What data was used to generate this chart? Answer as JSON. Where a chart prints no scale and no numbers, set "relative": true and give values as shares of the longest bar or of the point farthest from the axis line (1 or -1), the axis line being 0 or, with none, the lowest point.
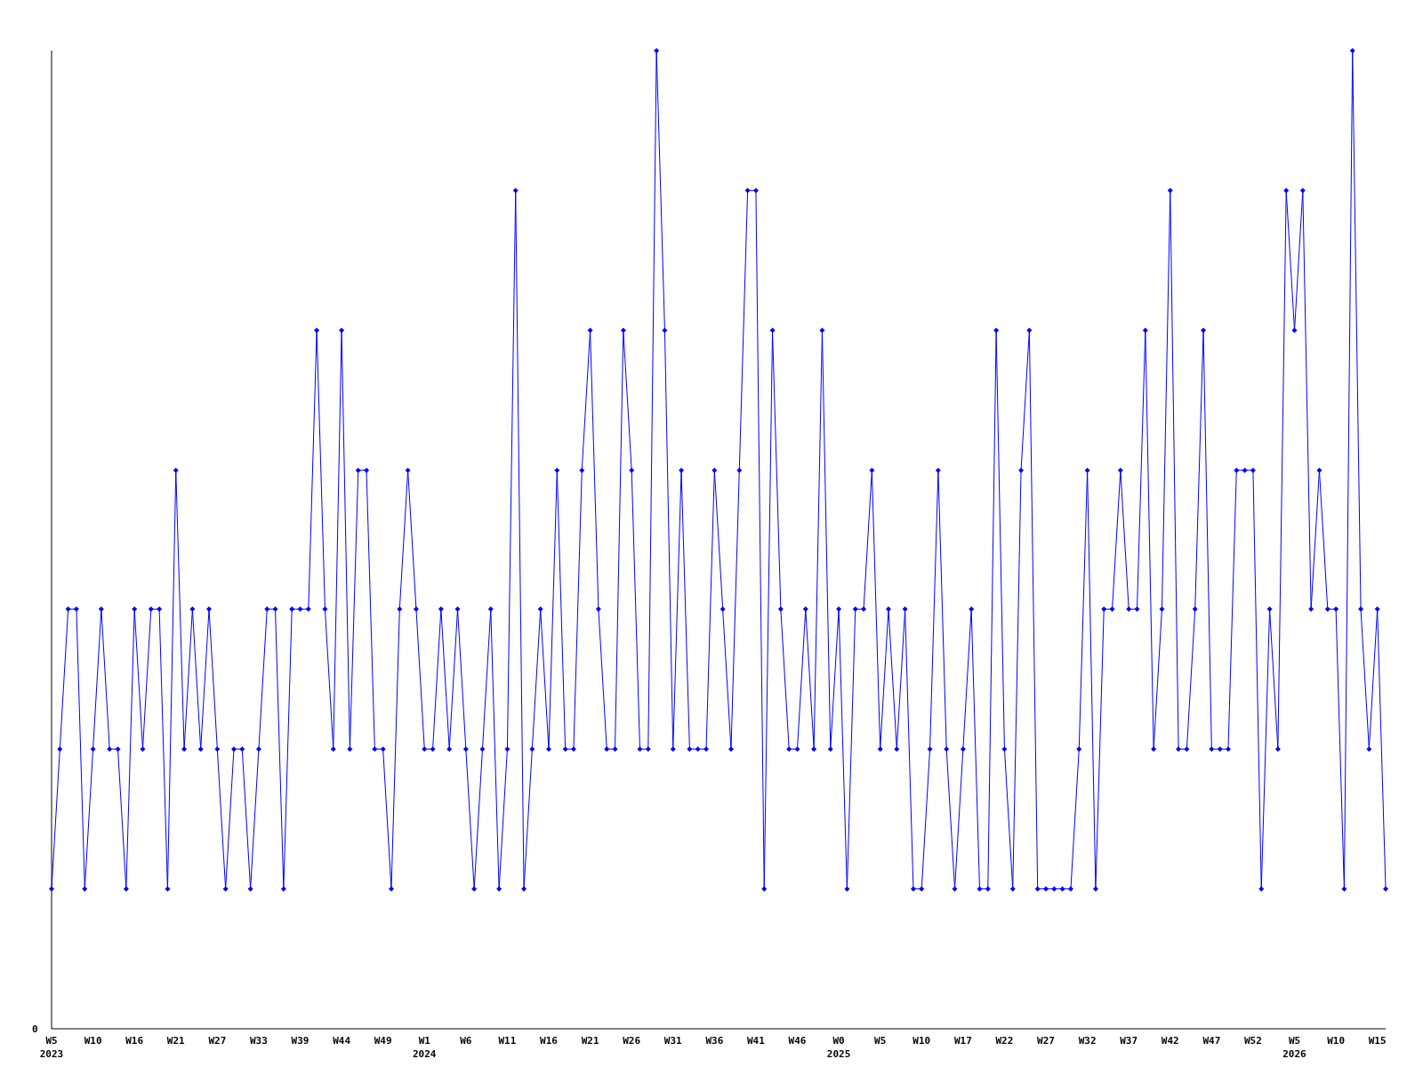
{
  "chart_data": {
    "type": "line",
    "relative": true,
    "marker": "diamond",
    "line_style": "solid",
    "annotations": [
      "0"
    ],
    "categories": [
      "W5\n2023",
      null,
      null,
      null,
      null,
      "W10",
      null,
      null,
      null,
      null,
      "W16",
      null,
      null,
      null,
      null,
      "W21",
      null,
      null,
      null,
      null,
      "W27",
      null,
      null,
      null,
      null,
      "W33",
      null,
      null,
      null,
      null,
      "W39",
      null,
      null,
      null,
      null,
      "W44",
      null,
      null,
      null,
      null,
      "W49",
      null,
      null,
      null,
      null,
      "W1\n2024",
      null,
      null,
      null,
      null,
      "W6",
      null,
      null,
      null,
      null,
      "W11",
      null,
      null,
      null,
      null,
      "W16",
      null,
      null,
      null,
      null,
      "W21",
      null,
      null,
      null,
      null,
      "W26",
      null,
      null,
      null,
      null,
      "W31",
      null,
      null,
      null,
      null,
      "W36",
      null,
      null,
      null,
      null,
      "W41",
      null,
      null,
      null,
      null,
      "W46",
      null,
      null,
      null,
      null,
      "W0\n2025",
      null,
      null,
      null,
      null,
      "W5",
      null,
      null,
      null,
      null,
      "W10",
      null,
      null,
      null,
      null,
      "W17",
      null,
      null,
      null,
      null,
      "W22",
      null,
      null,
      null,
      null,
      "W27",
      null,
      null,
      null,
      null,
      "W32",
      null,
      null,
      null,
      null,
      "W37",
      null,
      null,
      null,
      null,
      "W42",
      null,
      null,
      null,
      null,
      "W47",
      null,
      null,
      null,
      null,
      "W52",
      null,
      null,
      null,
      null,
      "W5\n2026",
      null,
      null,
      null,
      null,
      "W10",
      null,
      null,
      null,
      null,
      "W15",
      null
    ],
    "series": [
      {
        "color": "#0000ff",
        "values": [
          0.143,
          0.286,
          0.429,
          0.429,
          0.143,
          0.286,
          0.429,
          0.286,
          0.286,
          0.143,
          0.429,
          0.286,
          0.429,
          0.429,
          0.143,
          0.571,
          0.286,
          0.429,
          0.286,
          0.429,
          0.286,
          0.143,
          0.286,
          0.286,
          0.143,
          0.286,
          0.429,
          0.429,
          0.143,
          0.429,
          0.429,
          0.429,
          0.714,
          0.429,
          0.286,
          0.714,
          0.286,
          0.571,
          0.571,
          0.286,
          0.286,
          0.143,
          0.429,
          0.571,
          0.429,
          0.286,
          0.286,
          0.429,
          0.286,
          0.429,
          0.286,
          0.143,
          0.286,
          0.429,
          0.143,
          0.286,
          0.857,
          0.143,
          0.286,
          0.429,
          0.286,
          0.571,
          0.286,
          0.286,
          0.571,
          0.714,
          0.429,
          0.286,
          0.286,
          0.714,
          0.571,
          0.286,
          0.286,
          1,
          0.714,
          0.286,
          0.571,
          0.286,
          0.286,
          0.286,
          0.571,
          0.429,
          0.286,
          0.571,
          0.857,
          0.857,
          0.143,
          0.714,
          0.429,
          0.286,
          0.286,
          0.429,
          0.286,
          0.714,
          0.286,
          0.429,
          0.143,
          0.429,
          0.429,
          0.571,
          0.286,
          0.429,
          0.286,
          0.429,
          0.143,
          0.143,
          0.286,
          0.571,
          0.286,
          0.143,
          0.286,
          0.429,
          0.143,
          0.143,
          0.714,
          0.286,
          0.143,
          0.571,
          0.714,
          0.143,
          0.143,
          0.143,
          0.143,
          0.143,
          0.286,
          0.571,
          0.143,
          0.429,
          0.429,
          0.571,
          0.429,
          0.429,
          0.714,
          0.286,
          0.429,
          0.857,
          0.286,
          0.286,
          0.429,
          0.714,
          0.286,
          0.286,
          0.286,
          0.571,
          0.571,
          0.571,
          0.143,
          0.429,
          0.286,
          0.857,
          0.714,
          0.857,
          0.429,
          0.571,
          0.429,
          0.429,
          0.143,
          1,
          0.429,
          0.286,
          0.429,
          0.143
        ]
      }
    ]
  }
}
